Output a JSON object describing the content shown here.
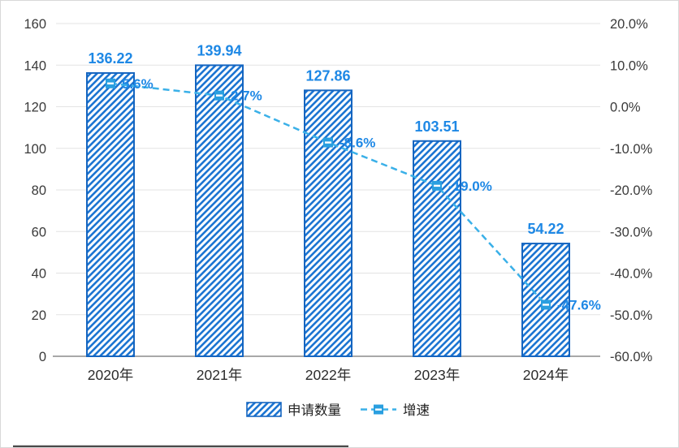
{
  "chart_data": {
    "type": "bar",
    "subtype": "bar-line-combo",
    "categories": [
      "2020年",
      "2021年",
      "2022年",
      "2023年",
      "2024年"
    ],
    "series": [
      {
        "name": "申请数量",
        "type": "bar",
        "axis": "left",
        "values": [
          136.22,
          139.94,
          127.86,
          103.51,
          54.22
        ],
        "labels": [
          "136.22",
          "139.94",
          "127.86",
          "103.51",
          "54.22"
        ]
      },
      {
        "name": "增速",
        "type": "line",
        "axis": "right",
        "values": [
          5.6,
          2.7,
          -8.6,
          -19.0,
          -47.6
        ],
        "labels": [
          "5.6%",
          "2.7%",
          "-8.6%",
          "-19.0%",
          "-47.6%"
        ]
      }
    ],
    "left_axis": {
      "min": 0,
      "max": 160,
      "step": 20,
      "ticks": [
        {
          "v": 0,
          "label": "0"
        },
        {
          "v": 20,
          "label": "20"
        },
        {
          "v": 40,
          "label": "40"
        },
        {
          "v": 60,
          "label": "60"
        },
        {
          "v": 80,
          "label": "80"
        },
        {
          "v": 100,
          "label": "100"
        },
        {
          "v": 120,
          "label": "120"
        },
        {
          "v": 140,
          "label": "140"
        },
        {
          "v": 160,
          "label": "160"
        }
      ]
    },
    "right_axis": {
      "min": -60,
      "max": 20,
      "step": 10,
      "ticks": [
        {
          "v": -60,
          "label": "-60.0%"
        },
        {
          "v": -50,
          "label": "-50.0%"
        },
        {
          "v": -40,
          "label": "-40.0%"
        },
        {
          "v": -30,
          "label": "-30.0%"
        },
        {
          "v": -20,
          "label": "-20.0%"
        },
        {
          "v": -10,
          "label": "-10.0%"
        },
        {
          "v": 0,
          "label": "0.0%"
        },
        {
          "v": 10,
          "label": "10.0%"
        },
        {
          "v": 20,
          "label": "20.0%"
        }
      ]
    },
    "legend": [
      {
        "label": "申请数量",
        "swatch": "hatched-bar"
      },
      {
        "label": "增速",
        "swatch": "dashed-line-square-marker"
      }
    ],
    "grid": true,
    "legend_position": "bottom-center",
    "colors": {
      "bar_hatch": "#1c75d2",
      "bar_stroke": "#1565c0",
      "bar_value_label": "#1e88e5",
      "line": "#3ab0e8",
      "marker_fill": "#2a9fe0",
      "line_value_label": "#1e88e5",
      "gridline": "#e3e3e3",
      "axis_line": "#8c8c8c",
      "axis_text": "#3a3a3a",
      "legend_text": "#222222"
    }
  }
}
